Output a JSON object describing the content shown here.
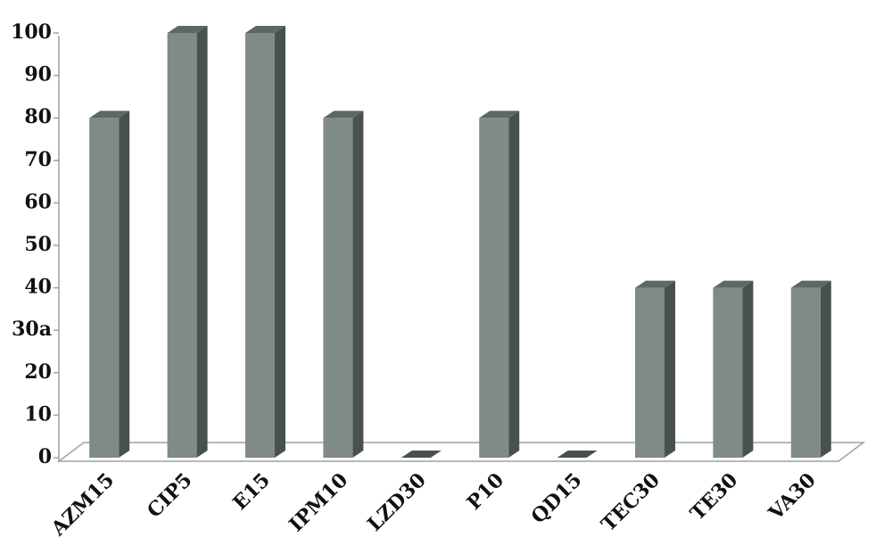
{
  "chart_data": {
    "type": "bar3d",
    "categories": [
      "AZM15",
      "CIP5",
      "E15",
      "IPM10",
      "LZD30",
      "P10",
      "QD15",
      "TEC30",
      "TE30",
      "VA30"
    ],
    "values": [
      80,
      100,
      100,
      80,
      0,
      80,
      0,
      40,
      40,
      40
    ],
    "color": "#7f8a89",
    "ylim": [
      0,
      100
    ],
    "yticks": [
      0,
      10,
      20,
      {
        "value": 30,
        "label": "30a"
      },
      40,
      50,
      60,
      70,
      80,
      90,
      100
    ]
  }
}
